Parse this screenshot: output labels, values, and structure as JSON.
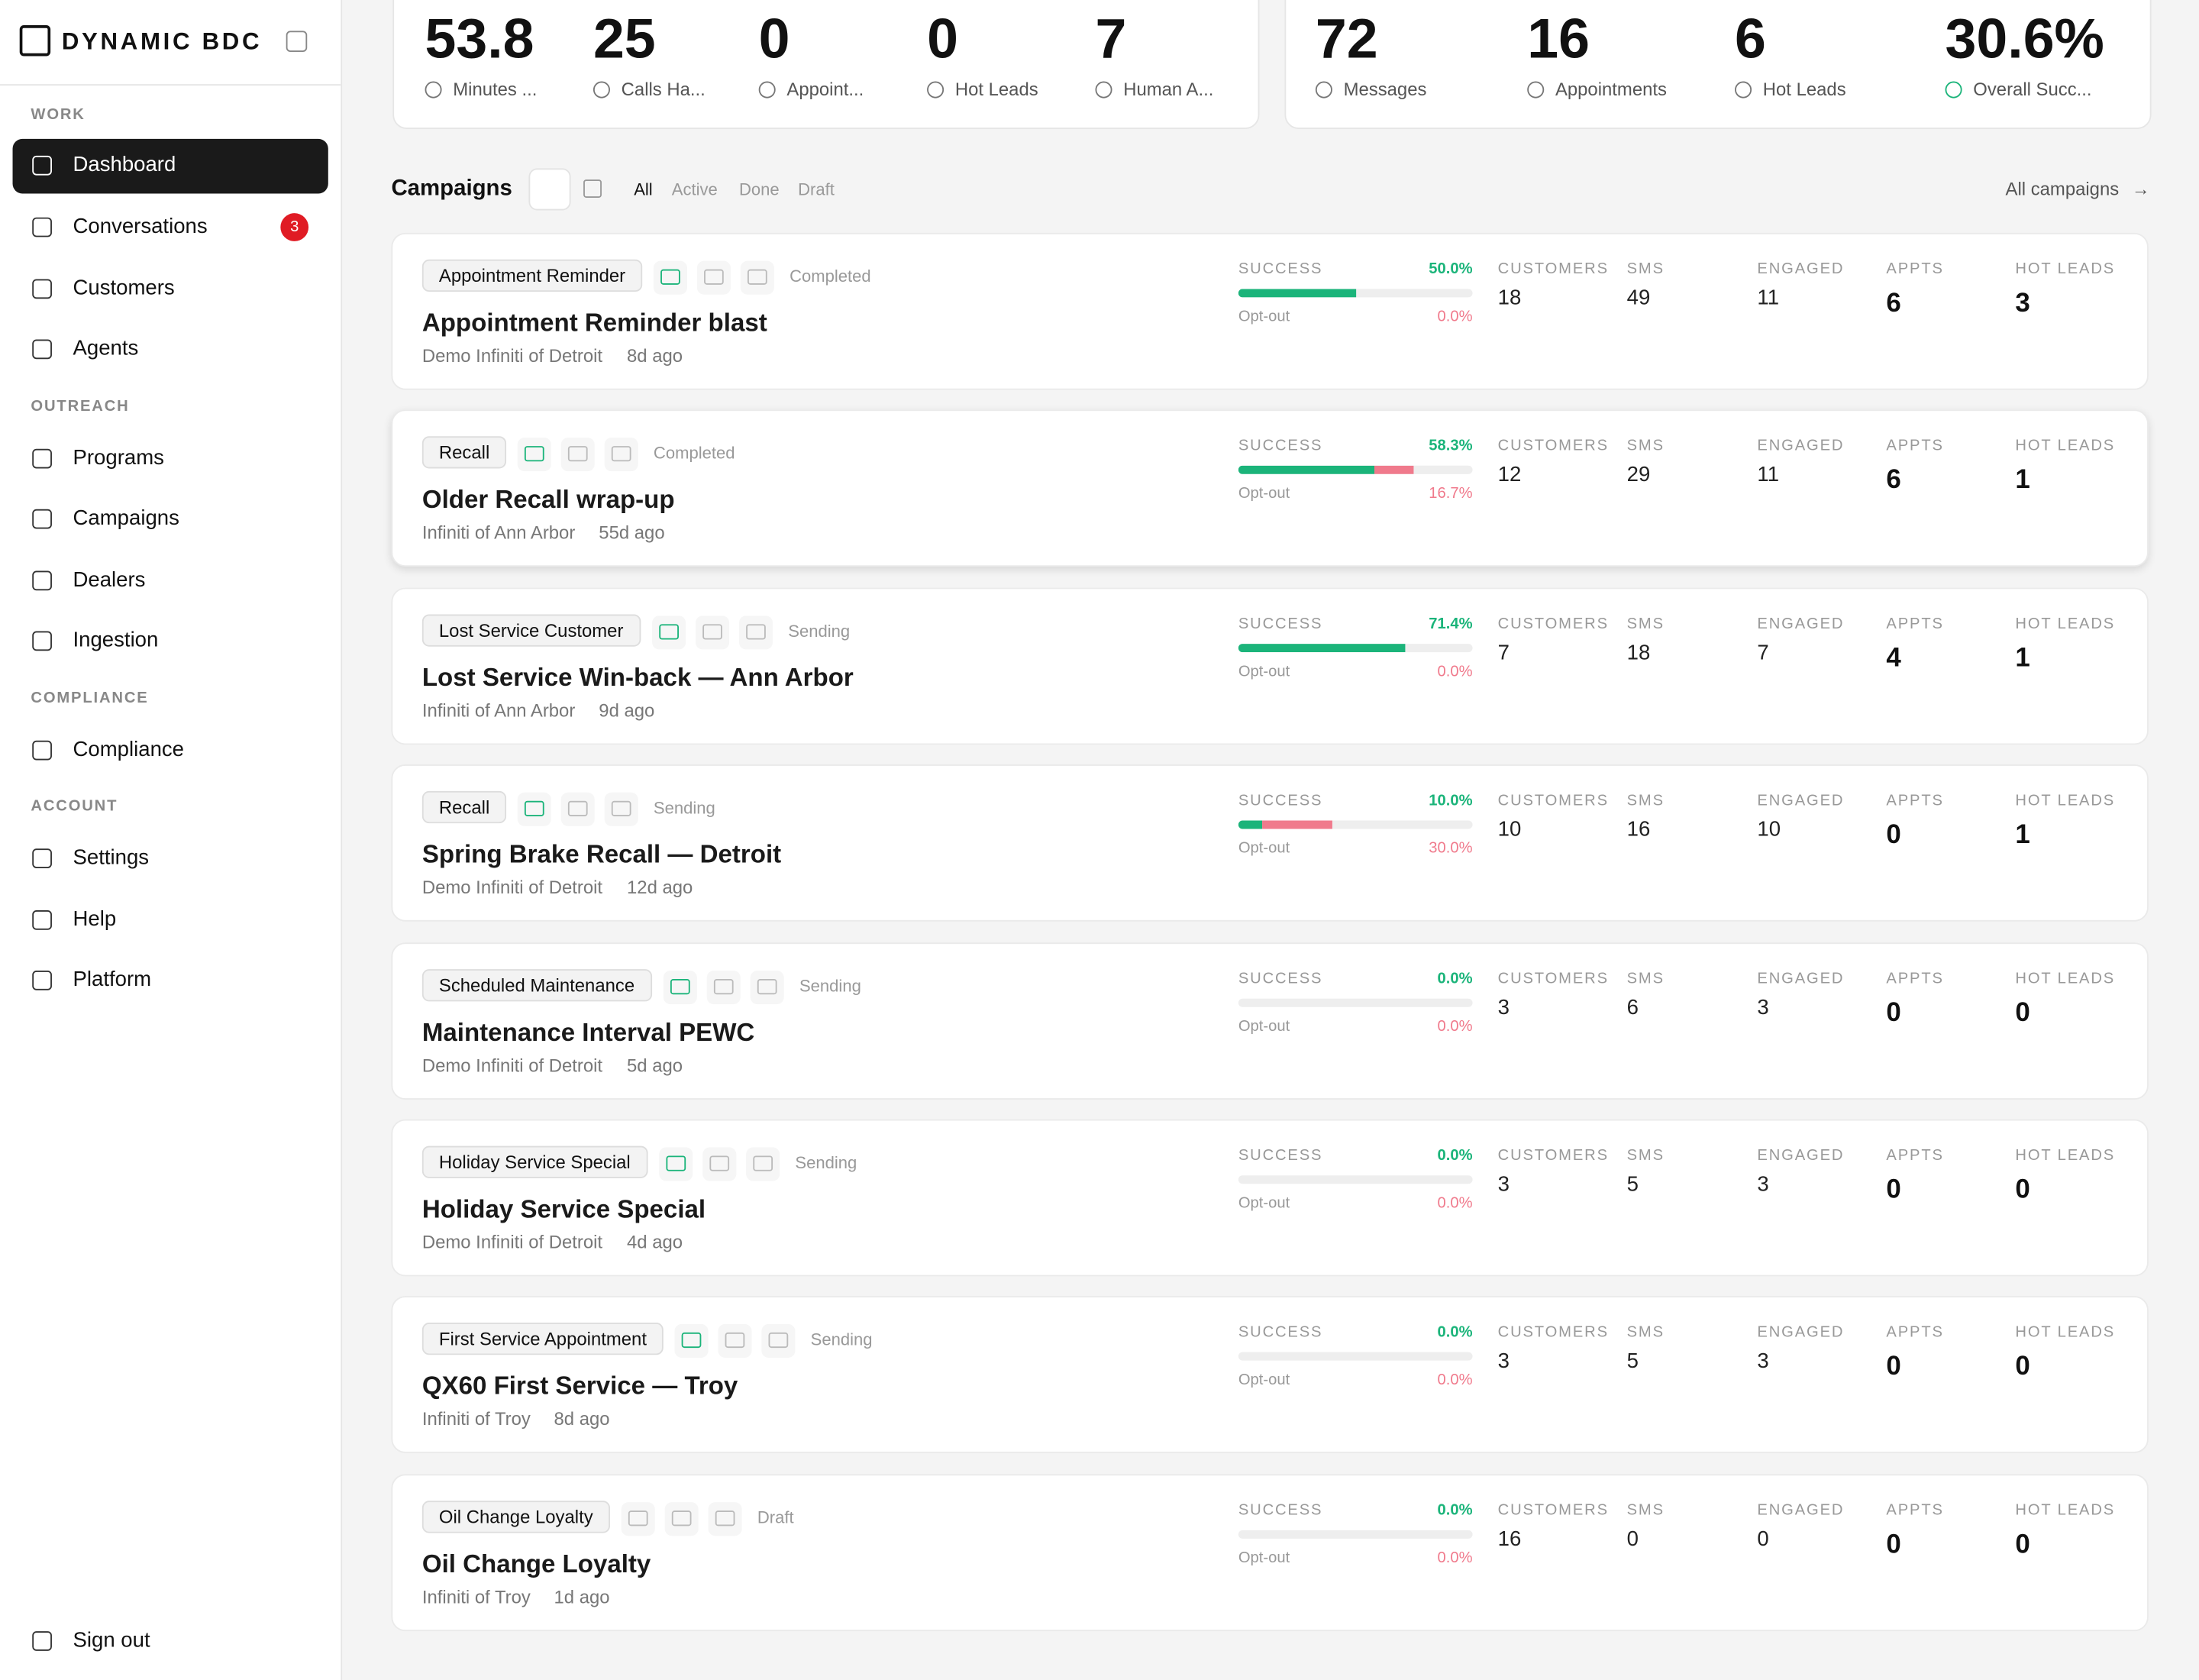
{
  "sidebar": {
    "brand": "DYNAMIC BDC",
    "sections": [
      {
        "heading": "WORK",
        "items": [
          {
            "label": "Dashboard"
          },
          {
            "label": "Conversations",
            "badge": "3"
          },
          {
            "label": "Customers"
          },
          {
            "label": "Agents"
          }
        ]
      },
      {
        "heading": "OUTREACH",
        "items": [
          {
            "label": "Programs"
          },
          {
            "label": "Campaigns"
          },
          {
            "label": "Dealers"
          },
          {
            "label": "Ingestion"
          }
        ]
      },
      {
        "heading": "COMPLIANCE",
        "items": [
          {
            "label": "Compliance"
          }
        ]
      },
      {
        "heading": "ACCOUNT",
        "items": [
          {
            "label": "Settings"
          },
          {
            "label": "Help"
          },
          {
            "label": "Platform"
          }
        ]
      }
    ],
    "sign_out": "Sign out"
  },
  "stats_left": [
    {
      "value": "53.8",
      "label": "Minutes ..."
    },
    {
      "value": "25",
      "label": "Calls Ha..."
    },
    {
      "value": "0",
      "label": "Appoint..."
    },
    {
      "value": "0",
      "label": "Hot Leads"
    },
    {
      "value": "7",
      "label": "Human A..."
    }
  ],
  "stats_right": [
    {
      "value": "72",
      "label": "Messages"
    },
    {
      "value": "16",
      "label": "Appointments"
    },
    {
      "value": "6",
      "label": "Hot Leads"
    },
    {
      "value": "30.6%",
      "label": "Overall Succ..."
    }
  ],
  "campaigns_header": {
    "title": "Campaigns",
    "filters": [
      "All",
      "Active",
      "Done",
      "Draft"
    ],
    "link": "All campaigns"
  },
  "columns": {
    "success": "SUCCESS",
    "optout": "Opt-out",
    "customers": "CUSTOMERS",
    "sms": "SMS",
    "engaged": "ENGAGED",
    "appts": "APPTS",
    "hot_leads": "HOT LEADS"
  },
  "campaigns": [
    {
      "tag": "Appointment Reminder",
      "status": "Completed",
      "title": "Appointment Reminder blast",
      "dealer": "Demo Infiniti of Detroit",
      "age": "8d ago",
      "success": "50.0%",
      "optout": "0.0%",
      "customers": "18",
      "sms": "49",
      "engaged": "11",
      "appts": "6",
      "hot_leads": "3"
    },
    {
      "tag": "Recall",
      "status": "Completed",
      "title": "Older Recall wrap-up",
      "dealer": "Infiniti of Ann Arbor",
      "age": "55d ago",
      "success": "58.3%",
      "optout": "16.7%",
      "customers": "12",
      "sms": "29",
      "engaged": "11",
      "appts": "6",
      "hot_leads": "1"
    },
    {
      "tag": "Lost Service Customer",
      "status": "Sending",
      "title": "Lost Service Win-back — Ann Arbor",
      "dealer": "Infiniti of Ann Arbor",
      "age": "9d ago",
      "success": "71.4%",
      "optout": "0.0%",
      "customers": "7",
      "sms": "18",
      "engaged": "7",
      "appts": "4",
      "hot_leads": "1"
    },
    {
      "tag": "Recall",
      "status": "Sending",
      "title": "Spring Brake Recall — Detroit",
      "dealer": "Demo Infiniti of Detroit",
      "age": "12d ago",
      "success": "10.0%",
      "optout": "30.0%",
      "customers": "10",
      "sms": "16",
      "engaged": "10",
      "appts": "0",
      "hot_leads": "1"
    },
    {
      "tag": "Scheduled Maintenance",
      "status": "Sending",
      "title": "Maintenance Interval PEWC",
      "dealer": "Demo Infiniti of Detroit",
      "age": "5d ago",
      "success": "0.0%",
      "optout": "0.0%",
      "customers": "3",
      "sms": "6",
      "engaged": "3",
      "appts": "0",
      "hot_leads": "0"
    },
    {
      "tag": "Holiday Service Special",
      "status": "Sending",
      "title": "Holiday Service Special",
      "dealer": "Demo Infiniti of Detroit",
      "age": "4d ago",
      "success": "0.0%",
      "optout": "0.0%",
      "customers": "3",
      "sms": "5",
      "engaged": "3",
      "appts": "0",
      "hot_leads": "0"
    },
    {
      "tag": "First Service Appointment",
      "status": "Sending",
      "title": "QX60 First Service — Troy",
      "dealer": "Infiniti of Troy",
      "age": "8d ago",
      "success": "0.0%",
      "optout": "0.0%",
      "customers": "3",
      "sms": "5",
      "engaged": "3",
      "appts": "0",
      "hot_leads": "0"
    },
    {
      "tag": "Oil Change Loyalty",
      "status": "Draft",
      "title": "Oil Change Loyalty",
      "dealer": "Infiniti of Troy",
      "age": "1d ago",
      "success": "0.0%",
      "optout": "0.0%",
      "customers": "16",
      "sms": "0",
      "engaged": "0",
      "appts": "0",
      "hot_leads": "0"
    }
  ]
}
